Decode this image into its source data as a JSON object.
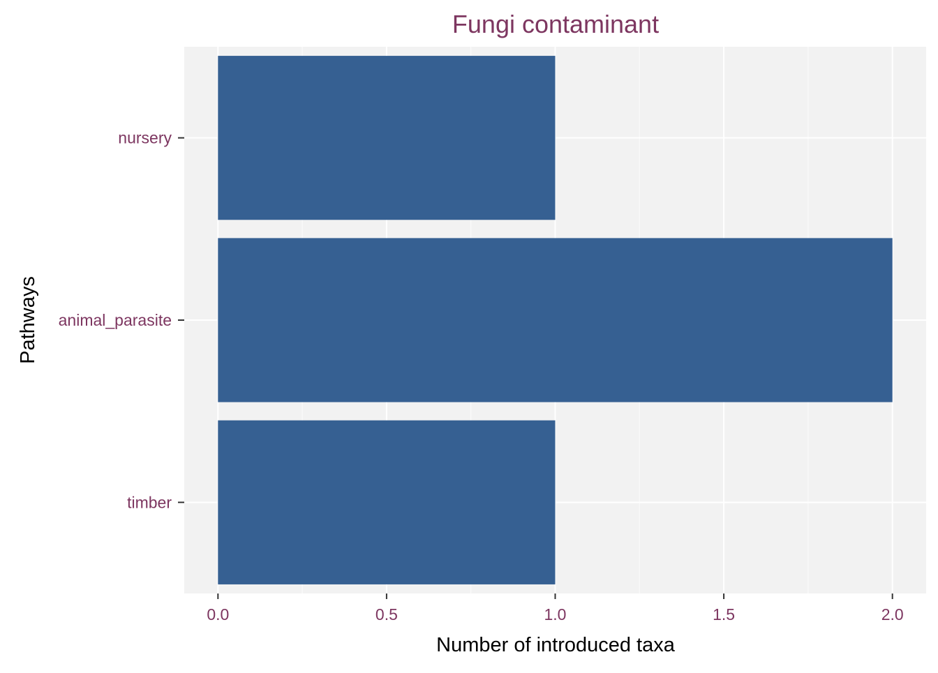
{
  "colors": {
    "panel_background": "#f2f2f2",
    "grid_major": "#ffffff",
    "grid_minor": "#fafafa",
    "bar_fill": "#366092",
    "accent_text": "#7d3660",
    "axis_title_text": "#000000"
  },
  "chart_data": {
    "type": "bar",
    "orientation": "horizontal",
    "title": "Fungi contaminant",
    "xlabel": "Number of introduced taxa",
    "ylabel": "Pathways",
    "categories": [
      "nursery",
      "animal_parasite",
      "timber"
    ],
    "values": [
      1,
      2,
      1
    ],
    "xlim": [
      -0.1,
      2.1
    ],
    "xticks": [
      0.0,
      0.5,
      1.0,
      1.5,
      2.0
    ],
    "xtick_labels": [
      "0.0",
      "0.5",
      "1.0",
      "1.5",
      "2.0"
    ],
    "grid": true,
    "legend": "none"
  }
}
